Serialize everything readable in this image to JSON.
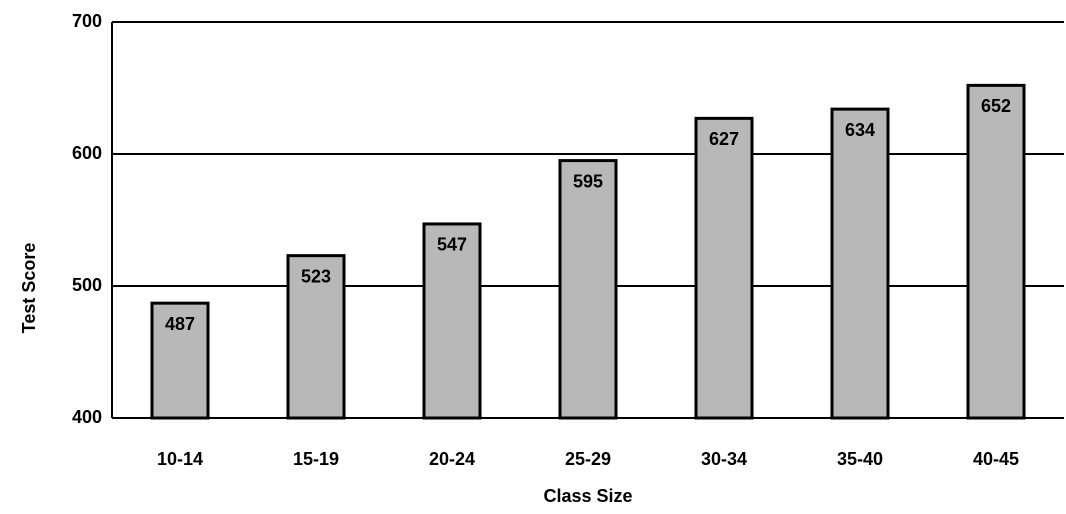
{
  "chart_data": {
    "type": "bar",
    "x_label": "Class Size",
    "y_label": "Test Score",
    "categories": [
      "10-14",
      "15-19",
      "20-24",
      "25-29",
      "30-34",
      "35-40",
      "40-45"
    ],
    "values": [
      487,
      523,
      547,
      595,
      627,
      634,
      652
    ],
    "color": "#b8b8b8",
    "edge_color": "#000000",
    "ylim": [
      400,
      700
    ],
    "yticks": [
      400,
      500,
      600,
      700
    ],
    "grid": true
  }
}
